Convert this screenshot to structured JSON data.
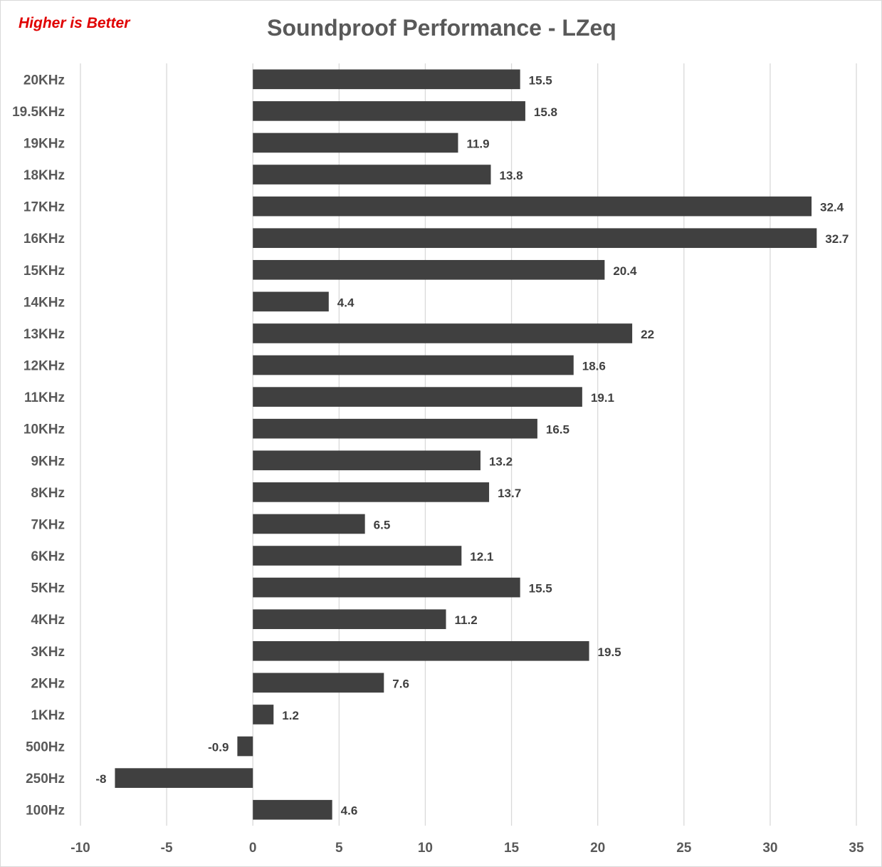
{
  "note": "Higher is Better",
  "chart_data": {
    "type": "bar",
    "orientation": "horizontal",
    "title": "Soundproof Performance - LZeq",
    "categories": [
      "20KHz",
      "19.5KHz",
      "19KHz",
      "18KHz",
      "17KHz",
      "16KHz",
      "15KHz",
      "14KHz",
      "13KHz",
      "12KHz",
      "11KHz",
      "10KHz",
      "9KHz",
      "8KHz",
      "7KHz",
      "6KHz",
      "5KHz",
      "4KHz",
      "3KHz",
      "2KHz",
      "1KHz",
      "500Hz",
      "250Hz",
      "100Hz"
    ],
    "values": [
      15.5,
      15.8,
      11.9,
      13.8,
      32.4,
      32.7,
      20.4,
      4.4,
      22,
      18.6,
      19.1,
      16.5,
      13.2,
      13.7,
      6.5,
      12.1,
      15.5,
      11.2,
      19.5,
      7.6,
      1.2,
      -0.9,
      -8,
      4.6
    ],
    "value_labels": [
      "15.5",
      "15.8",
      "11.9",
      "13.8",
      "32.4",
      "32.7",
      "20.4",
      "4.4",
      "22",
      "18.6",
      "19.1",
      "16.5",
      "13.2",
      "13.7",
      "6.5",
      "12.1",
      "15.5",
      "11.2",
      "19.5",
      "7.6",
      "1.2",
      "-0.9",
      "-8",
      "4.6"
    ],
    "xlim": [
      -10,
      35
    ],
    "xticks": [
      -10,
      -5,
      0,
      5,
      10,
      15,
      20,
      25,
      30,
      35
    ],
    "xtick_labels": [
      "-10",
      "-5",
      "0",
      "5",
      "10",
      "15",
      "20",
      "25",
      "30",
      "35"
    ],
    "grid": true,
    "legend": "none",
    "bar_color": "#404040",
    "grid_color": "#d9d9d9",
    "note_color": "#e00000"
  }
}
